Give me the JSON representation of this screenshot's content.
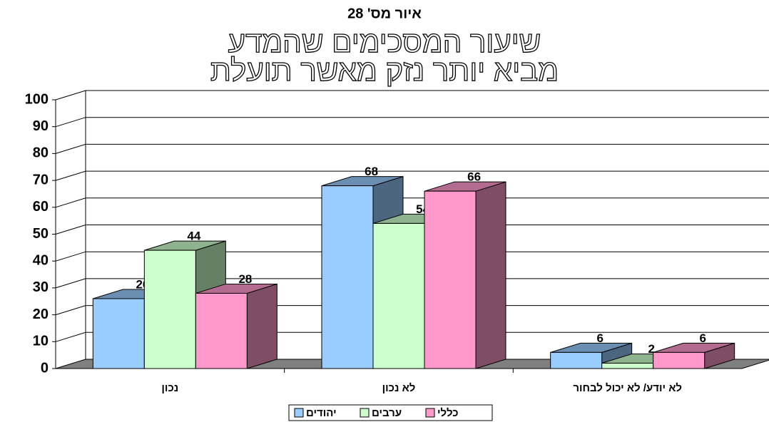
{
  "chart_data": {
    "type": "bar3d",
    "title": "איור מס' 28",
    "subtitle": [
      "שיעור המסכימים שהמדע",
      "מביא יותר נזק מאשר תועלת"
    ],
    "categories": [
      "נכון",
      "לא נכון",
      "לא יודע/ לא יכול לבחור"
    ],
    "series": [
      {
        "name": "יהודים",
        "color": "#99ccff",
        "values": [
          26,
          68,
          6
        ]
      },
      {
        "name": "ערבים",
        "color": "#ccffcc",
        "values": [
          44,
          54,
          2
        ]
      },
      {
        "name": "כללי",
        "color": "#ff99cc",
        "values": [
          28,
          66,
          6
        ]
      }
    ],
    "ylim": [
      0,
      100
    ],
    "yticks": [
      0,
      10,
      20,
      30,
      40,
      50,
      60,
      70,
      80,
      90,
      100
    ],
    "grid": true
  }
}
